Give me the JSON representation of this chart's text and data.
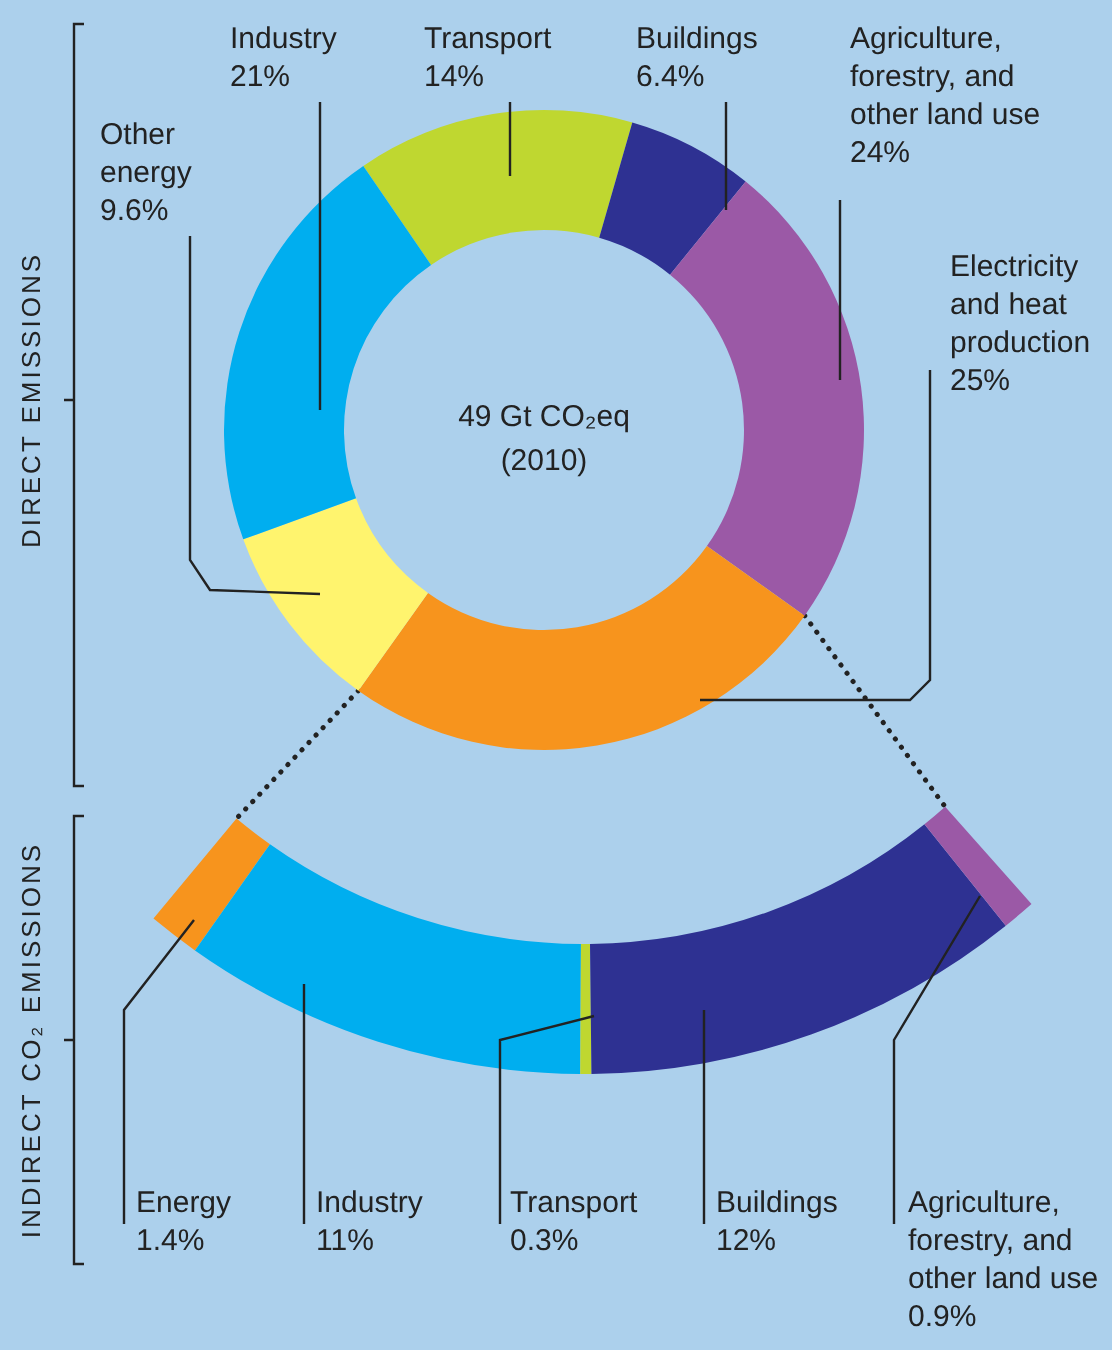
{
  "chart_data": [
    {
      "type": "donut",
      "title": "49 Gt CO₂eq",
      "subtitle": "(2010)",
      "ylabel": "DIRECT EMISSIONS",
      "categories": [
        "Transport",
        "Buildings",
        "Agriculture,\nforestry, and\nother land use",
        "Electricity\nand heat\nproduction",
        "Other\nenergy",
        "Industry"
      ],
      "values": [
        14,
        6.4,
        24,
        25,
        9.6,
        21
      ],
      "colors": [
        "#bfd730",
        "#2e3192",
        "#9b59a6",
        "#f7941d",
        "#fff46e",
        "#00aeef"
      ],
      "value_labels": [
        "14%",
        "6.4%",
        "24%",
        "25%",
        "9.6%",
        "21%"
      ]
    },
    {
      "type": "other",
      "ylabel": "INDIRECT CO₂ EMISSIONS",
      "categories": [
        "Energy",
        "Industry",
        "Transport",
        "Buildings",
        "Agriculture,\nforestry, and\nother land use"
      ],
      "values": [
        1.4,
        11,
        0.3,
        12,
        0.9
      ],
      "colors": [
        "#f7941d",
        "#00aeef",
        "#bfd730",
        "#2e3192",
        "#9b59a6"
      ],
      "value_labels": [
        "1.4%",
        "11%",
        "0.3%",
        "12%",
        "0.9%"
      ]
    }
  ]
}
